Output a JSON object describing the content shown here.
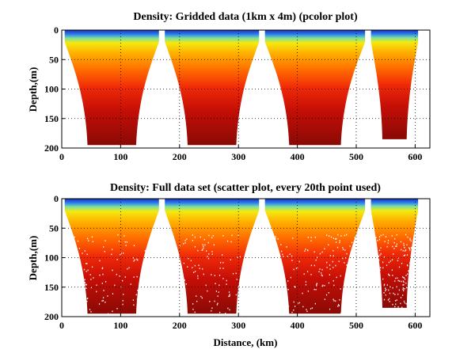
{
  "chart_data": [
    {
      "type": "heatmap",
      "title": "Density: Gridded data (1km x 4m) (pcolor plot)",
      "xlabel": "",
      "ylabel": "Depth,(m)",
      "xlim": [
        0,
        625
      ],
      "ylim": [
        200,
        0
      ],
      "xticks": [
        0,
        100,
        200,
        300,
        400,
        500,
        600
      ],
      "yticks": [
        0,
        50,
        100,
        150,
        200
      ],
      "grid": true,
      "colormap": "jet",
      "sections": [
        {
          "x_start": 5,
          "x_end": 165,
          "bottom": 195
        },
        {
          "x_start": 175,
          "x_end": 335,
          "bottom": 195
        },
        {
          "x_start": 345,
          "x_end": 515,
          "bottom": 195
        },
        {
          "x_start": 525,
          "x_end": 605,
          "bottom": 185
        }
      ]
    },
    {
      "type": "scatter",
      "title": "Density: Full data set (scatter plot, every 20th point used)",
      "xlabel": "Distance, (km)",
      "ylabel": "Depth,(m)",
      "xlim": [
        0,
        625
      ],
      "ylim": [
        200,
        0
      ],
      "xticks": [
        0,
        100,
        200,
        300,
        400,
        500,
        600
      ],
      "yticks": [
        0,
        50,
        100,
        150,
        200
      ],
      "grid": true,
      "colormap": "jet",
      "sampling": "every 20th point"
    }
  ],
  "colors": {
    "shallow": "#1a3fd6",
    "mid": "#f2e600",
    "deep": "#8a0a05"
  }
}
